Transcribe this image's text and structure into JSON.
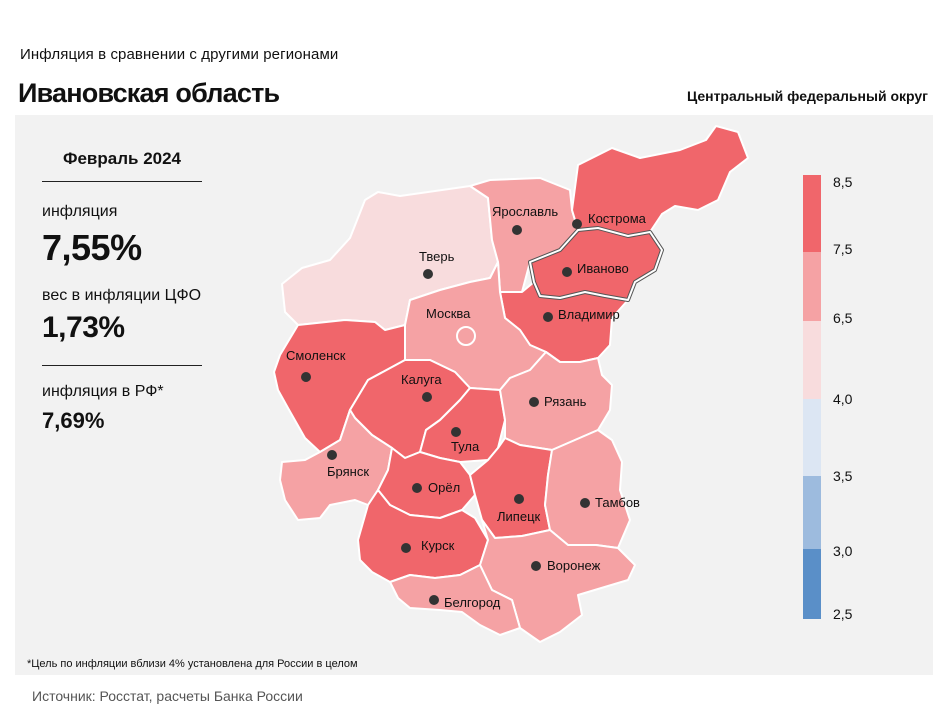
{
  "header": {
    "subtitle": "Инфляция в сравнении с другими регионами",
    "title": "Ивановская область",
    "district": "Центральный федеральный округ"
  },
  "info": {
    "period": "Февраль 2024",
    "inflation_label": "инфляция",
    "inflation_value": "7,55%",
    "weight_label": "вес в инфляции ЦФО",
    "weight_value": "1,73%",
    "rf_label": "инфляция в РФ*",
    "rf_value": "7,69%"
  },
  "footnote": "*Цель по инфляции вблизи 4% установлена для России в целом",
  "source": "Источник: Росстат, расчеты Банка России",
  "legend": {
    "ticks": [
      "8,5",
      "7,5",
      "6,5",
      "4,0",
      "3,5",
      "3,0",
      "2,5"
    ],
    "colors": [
      "#f0666b",
      "#f5a2a4",
      "#f8dcdd",
      "#dce6f3",
      "#9dbbde",
      "#5a8fc8"
    ]
  },
  "regions": [
    {
      "name": "Тверь",
      "color": "#f8dcdd"
    },
    {
      "name": "Ярославль",
      "color": "#f5a2a4"
    },
    {
      "name": "Кострома",
      "color": "#f0666b"
    },
    {
      "name": "Иваново",
      "color": "#f0666b",
      "highlighted": true
    },
    {
      "name": "Владимир",
      "color": "#f0666b"
    },
    {
      "name": "Москва",
      "color": "#f5a2a4"
    },
    {
      "name": "Смоленск",
      "color": "#f0666b"
    },
    {
      "name": "Калуга",
      "color": "#f0666b"
    },
    {
      "name": "Тула",
      "color": "#f0666b"
    },
    {
      "name": "Рязань",
      "color": "#f5a2a4"
    },
    {
      "name": "Брянск",
      "color": "#f5a2a4"
    },
    {
      "name": "Орёл",
      "color": "#f0666b"
    },
    {
      "name": "Липецк",
      "color": "#f0666b"
    },
    {
      "name": "Тамбов",
      "color": "#f5a2a4"
    },
    {
      "name": "Курск",
      "color": "#f0666b"
    },
    {
      "name": "Воронеж",
      "color": "#f5a2a4"
    },
    {
      "name": "Белгород",
      "color": "#f5a2a4"
    }
  ]
}
